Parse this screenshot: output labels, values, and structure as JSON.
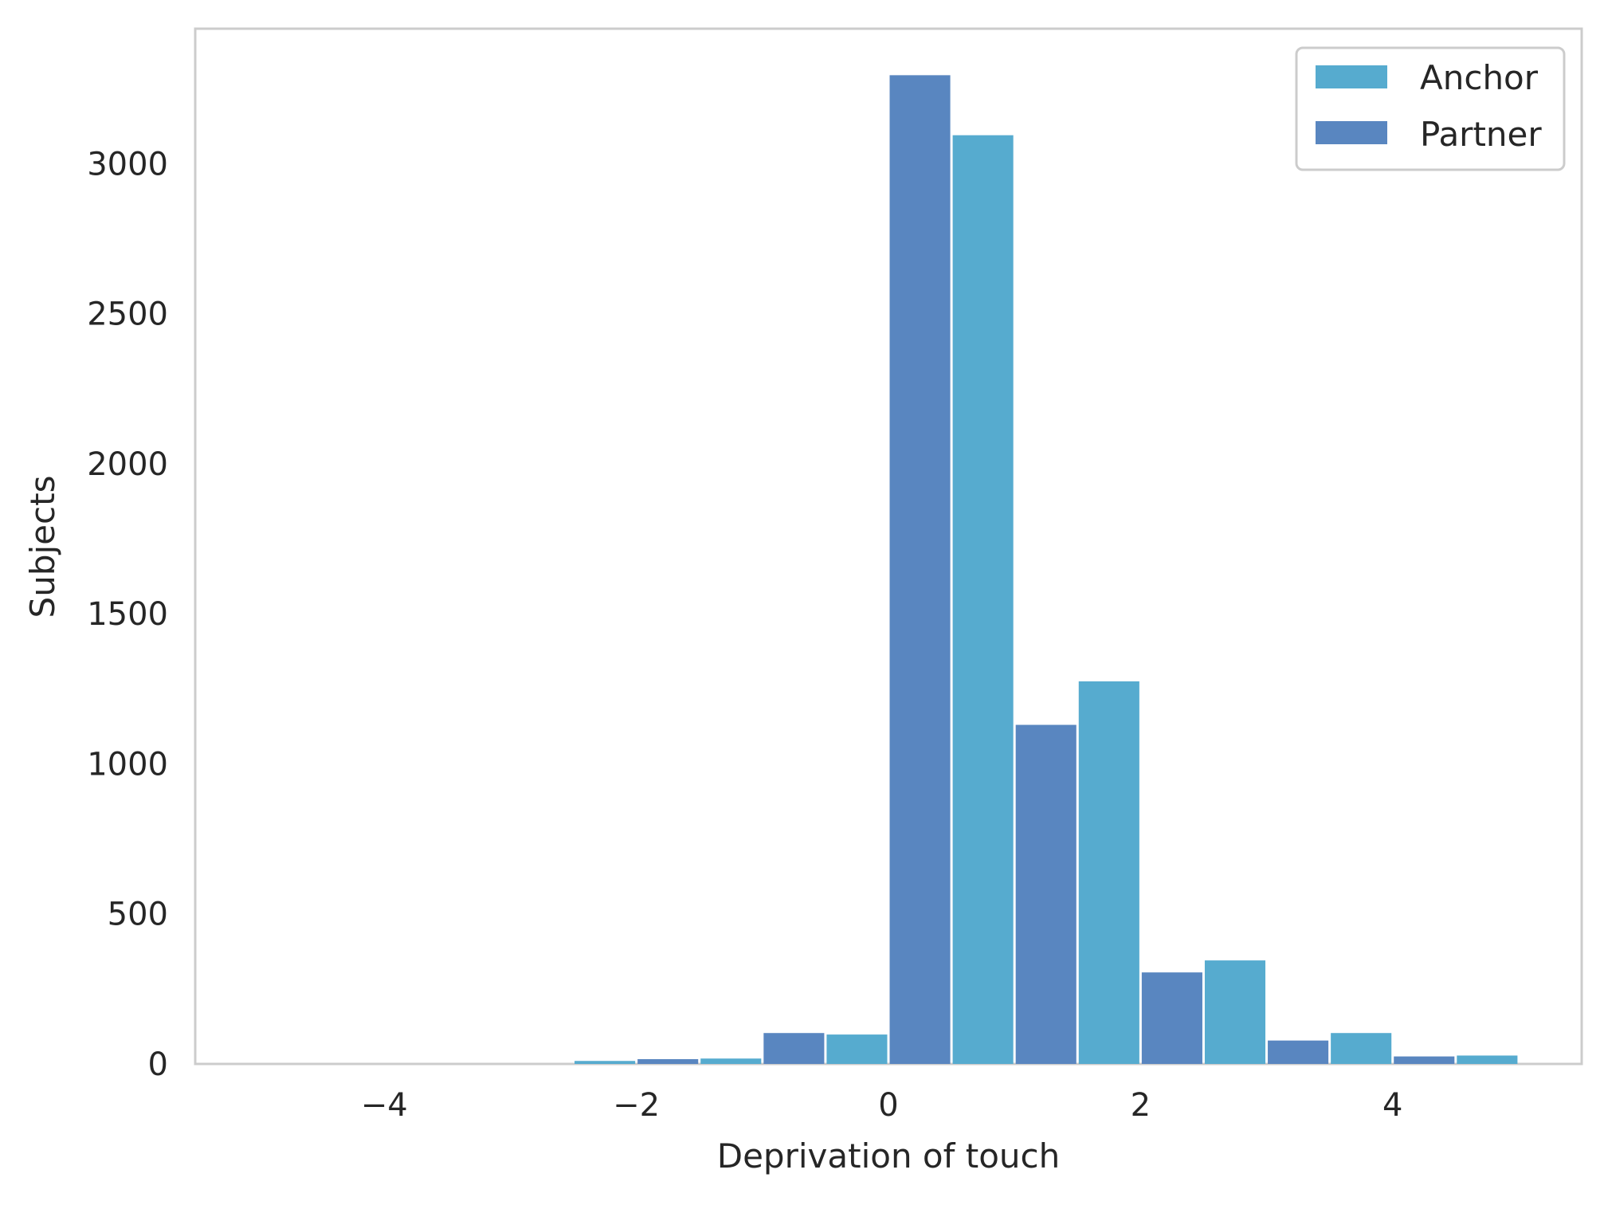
{
  "chart_data": {
    "type": "bar",
    "xlabel": "Deprivation of touch",
    "ylabel": "Subjects",
    "xlim": [
      -5.5,
      5.5
    ],
    "ylim": [
      0,
      3450
    ],
    "grid": false,
    "legend_position": "top-right",
    "xticks": [
      -4,
      -2,
      0,
      2,
      4
    ],
    "xtick_labels": [
      "−4",
      "−2",
      "0",
      "2",
      "4"
    ],
    "yticks": [
      0,
      500,
      1000,
      1500,
      2000,
      2500,
      3000
    ],
    "ytick_labels": [
      "0",
      "500",
      "1000",
      "1500",
      "2000",
      "2500",
      "3000"
    ],
    "series": [
      {
        "name": "Anchor",
        "color": "#56abcf",
        "bins": [
          {
            "x0": -2.5,
            "x1": -2.0,
            "value": 10
          },
          {
            "x0": -1.5,
            "x1": -1.0,
            "value": 18
          },
          {
            "x0": -0.5,
            "x1": 0.0,
            "value": 98
          },
          {
            "x0": 0.5,
            "x1": 1.0,
            "value": 3095
          },
          {
            "x0": 1.5,
            "x1": 2.0,
            "value": 1275
          },
          {
            "x0": 2.5,
            "x1": 3.0,
            "value": 345
          },
          {
            "x0": 3.5,
            "x1": 4.0,
            "value": 103
          },
          {
            "x0": 4.5,
            "x1": 5.0,
            "value": 28
          }
        ]
      },
      {
        "name": "Partner",
        "color": "#5986c0",
        "bins": [
          {
            "x0": -2.0,
            "x1": -1.5,
            "value": 16
          },
          {
            "x0": -1.0,
            "x1": -0.5,
            "value": 103
          },
          {
            "x0": 0.0,
            "x1": 0.5,
            "value": 3295
          },
          {
            "x0": 1.0,
            "x1": 1.5,
            "value": 1130
          },
          {
            "x0": 2.0,
            "x1": 2.5,
            "value": 305
          },
          {
            "x0": 3.0,
            "x1": 3.5,
            "value": 78
          },
          {
            "x0": 4.0,
            "x1": 4.5,
            "value": 25
          }
        ]
      }
    ]
  }
}
